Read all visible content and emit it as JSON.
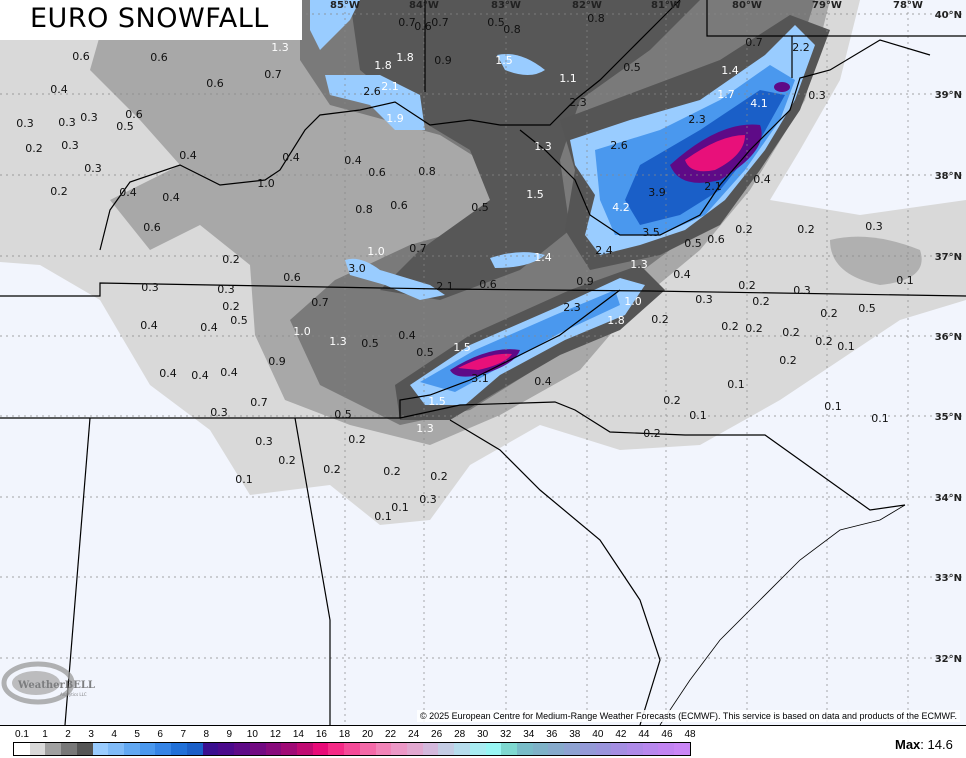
{
  "title": "EURO SNOWFALL",
  "copyright": "© 2025 European Centre for Medium-Range Weather Forecasts (ECMWF). This service is based on data and products of the ECMWF.",
  "logo": {
    "name": "WeatherBELL",
    "subtitle": "Analytics LLC"
  },
  "max": {
    "label": "Max",
    "value": "14.6"
  },
  "legend": {
    "labels": [
      "0.1",
      "1",
      "2",
      "3",
      "4",
      "5",
      "6",
      "7",
      "8",
      "9",
      "10",
      "12",
      "14",
      "16",
      "18",
      "20",
      "22",
      "24",
      "26",
      "28",
      "30",
      "32",
      "34",
      "36",
      "38",
      "40",
      "42",
      "44",
      "46",
      "48"
    ],
    "colors": [
      "#ffffff",
      "#d9d9d9",
      "#a0a0a0",
      "#787878",
      "#555555",
      "#99ccff",
      "#80bbf8",
      "#62a8f2",
      "#4a98ee",
      "#3584e6",
      "#2070d8",
      "#1a5fc8",
      "#3a0f8f",
      "#4b0a8c",
      "#5e0a87",
      "#720a82",
      "#880a7c",
      "#a00a76",
      "#c00a72",
      "#e80a78",
      "#f52a86",
      "#f54a98",
      "#f46aa8",
      "#f284b8",
      "#ec98c6",
      "#e2a8d0",
      "#d4b8dc",
      "#c4cce4",
      "#b6dcec",
      "#a8ecf2",
      "#98f6f4",
      "#7ed8d0",
      "#78bcc8",
      "#7eb2c8",
      "#86aacc",
      "#8ea2d2",
      "#949ad8",
      "#9a94dc",
      "#a48ee2",
      "#ae8ae8",
      "#b888ee",
      "#c284f2",
      "#ca86f6"
    ]
  },
  "longitude_labels": [
    "85°W",
    "84°W",
    "83°W",
    "82°W",
    "81°W",
    "80°W",
    "79°W",
    "78°W"
  ],
  "latitude_labels": [
    "40°N",
    "39°N",
    "38°N",
    "37°N",
    "36°N",
    "35°N",
    "34°N",
    "33°N",
    "32°N"
  ],
  "snowfall_values": [
    "0.6",
    "0.6",
    "0.6",
    "0.4",
    "0.3",
    "0.3",
    "0.3",
    "0.6",
    "0.5",
    "0.2",
    "0.3",
    "0.3",
    "0.2",
    "0.4",
    "0.4",
    "0.4",
    "0.6",
    "1.0",
    "0.4",
    "0.7",
    "1.3",
    "0.4",
    "0.6",
    "0.8",
    "0.6",
    "0.8",
    "0.5",
    "0.7",
    "0.6",
    "0.7",
    "1.8",
    "1.8",
    "0.9",
    "2.6",
    "2.1",
    "1.9",
    "0.5",
    "0.8",
    "1.5",
    "1.1",
    "0.5",
    "0.8",
    "0.7",
    "2.2",
    "1.4",
    "1.7",
    "4.1",
    "0.3",
    "2.3",
    "2.6",
    "1.3",
    "3.9",
    "2.1",
    "0.4",
    "1.5",
    "4.2",
    "3.5",
    "2.3",
    "0.5",
    "0.6",
    "0.2",
    "0.2",
    "0.3",
    "1.0",
    "0.7",
    "3.0",
    "1.4",
    "2.4",
    "1.3",
    "0.2",
    "0.6",
    "0.3",
    "0.3",
    "0.2",
    "0.5",
    "0.4",
    "0.4",
    "0.7",
    "1.0",
    "1.3",
    "0.5",
    "0.4",
    "0.5",
    "1.5",
    "0.9",
    "0.4",
    "0.4",
    "0.4",
    "2.1",
    "0.6",
    "0.9",
    "0.4",
    "0.3",
    "0.2",
    "0.2",
    "0.3",
    "0.2",
    "0.5",
    "0.1",
    "0.2",
    "0.2",
    "0.2",
    "0.2",
    "0.1",
    "0.2",
    "0.1",
    "0.2",
    "0.1",
    "0.1",
    "0.1",
    "0.2",
    "0.2",
    "2.3",
    "1.0",
    "1.8",
    "0.4",
    "3.1",
    "1.5",
    "1.3",
    "0.7",
    "0.3",
    "0.5",
    "0.3",
    "0.2",
    "0.2",
    "0.1",
    "0.2",
    "0.2",
    "0.2",
    "0.3",
    "0.1",
    "0.1",
    "0.1"
  ],
  "colors": {
    "background": "#f2f5fd",
    "border": "#000000"
  }
}
